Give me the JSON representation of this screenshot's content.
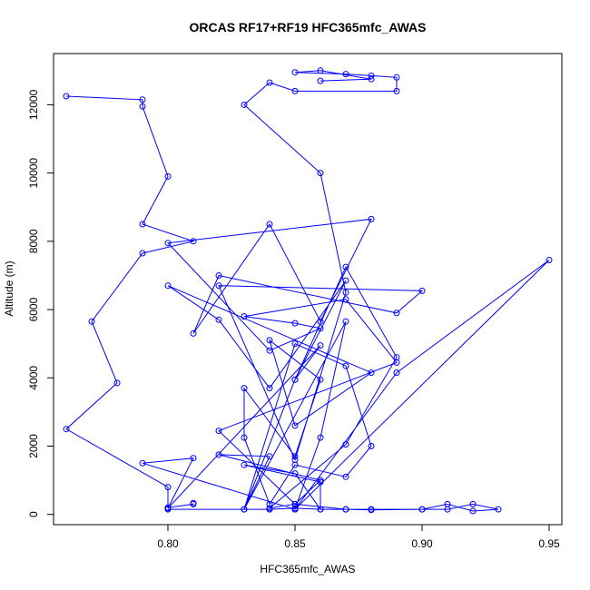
{
  "chart_data": {
    "type": "line",
    "title": "ORCAS RF17+RF19 HFC365mfc_AWAS",
    "xlabel": "HFC365mfc_AWAS",
    "ylabel": "Altitude (m)",
    "xlim": [
      0.755,
      0.955
    ],
    "ylim": [
      -300,
      13500
    ],
    "xticks": [
      0.8,
      0.85,
      0.9,
      0.95
    ],
    "xtick_labels": [
      "0.80",
      "0.85",
      "0.90",
      "0.95"
    ],
    "yticks": [
      0,
      2000,
      4000,
      6000,
      8000,
      10000,
      12000
    ],
    "ytick_labels": [
      "0",
      "2000",
      "4000",
      "6000",
      "8000",
      "10000",
      "12000"
    ],
    "marker": "open-circle",
    "line_color": "#0000ff",
    "grid": false,
    "legend": "none",
    "series": [
      {
        "x": [
          0.76,
          0.79,
          0.79,
          0.8,
          0.79,
          0.81,
          0.79,
          0.77,
          0.78,
          0.76,
          0.8,
          0.8,
          0.81,
          0.81
        ],
        "y": [
          12250,
          12150,
          11950,
          9900,
          8500,
          8000,
          7650,
          5650,
          3850,
          2500,
          800,
          200,
          300,
          330
        ]
      },
      {
        "x": [
          0.8,
          0.84,
          0.85,
          0.86,
          0.86,
          0.83,
          0.85,
          0.86,
          0.87,
          0.88,
          0.9,
          0.91,
          0.92,
          0.93,
          0.92,
          0.91,
          0.9,
          0.88,
          0.87,
          0.85,
          0.84,
          0.87,
          0.89,
          0.87,
          0.85,
          0.83,
          0.87,
          0.86,
          0.85,
          0.95,
          0.89,
          0.85,
          0.79,
          0.81,
          0.8,
          0.86,
          0.85,
          0.87,
          0.84,
          0.82,
          0.8,
          0.88,
          0.85,
          0.84,
          0.86,
          0.85,
          0.83,
          0.83,
          0.84,
          0.85,
          0.87,
          0.88,
          0.87,
          0.85,
          0.83,
          0.84,
          0.82,
          0.86,
          0.85,
          0.82,
          0.89,
          0.87,
          0.83,
          0.85,
          0.86,
          0.84,
          0.8,
          0.88,
          0.86,
          0.84,
          0.81,
          0.82,
          0.89,
          0.9,
          0.82,
          0.85,
          0.87,
          0.86,
          0.83,
          0.84,
          0.85,
          0.89,
          0.89,
          0.88,
          0.87,
          0.85,
          0.86,
          0.88,
          0.86
        ],
        "y": [
          150,
          150,
          180,
          150,
          950,
          1450,
          1200,
          150,
          150,
          150,
          150,
          300,
          100,
          150,
          300,
          150,
          150,
          130,
          150,
          300,
          180,
          2050,
          4600,
          7250,
          3950,
          150,
          5650,
          2250,
          150,
          7450,
          4150,
          150,
          1500,
          1650,
          180,
          4950,
          3950,
          6850,
          3700,
          5700,
          6700,
          4150,
          2600,
          5100,
          3950,
          1700,
          3700,
          2250,
          300,
          1450,
          1100,
          2000,
          4350,
          5000,
          150,
          1700,
          1750,
          1000,
          300,
          2450,
          4450,
          6300,
          5800,
          5600,
          5450,
          4800,
          7950,
          8650,
          5650,
          8500,
          5300,
          7000,
          5900,
          6550,
          6700,
          1600,
          6500,
          10000,
          12000,
          12650,
          12400,
          12400,
          12800,
          12850,
          12900,
          12950,
          13000,
          12750,
          12700
        ]
      }
    ]
  }
}
